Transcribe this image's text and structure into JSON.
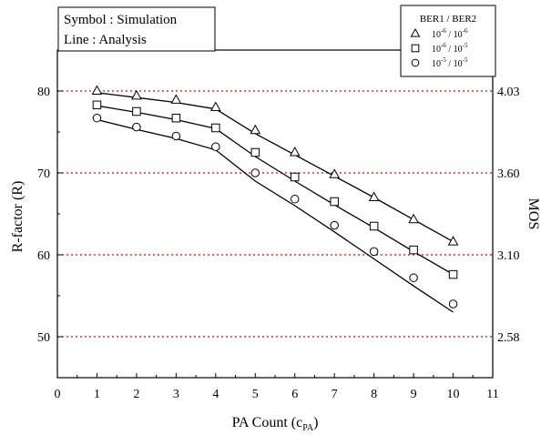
{
  "chart_data": {
    "type": "line",
    "xlabel": {
      "main": "PA Count (c",
      "sub": "PA",
      "close": ")"
    },
    "ylabel": "R-factor (R)",
    "y2label": "MOS",
    "xlim": [
      0,
      11
    ],
    "ylim": [
      45,
      85
    ],
    "xticks": [
      "0",
      "1",
      "2",
      "3",
      "4",
      "5",
      "6",
      "7",
      "8",
      "9",
      "10",
      "11"
    ],
    "yticks": [
      {
        "value": 50,
        "label": "50"
      },
      {
        "value": 60,
        "label": "60"
      },
      {
        "value": 70,
        "label": "70"
      },
      {
        "value": 80,
        "label": "80"
      }
    ],
    "mos_ticks": [
      {
        "value": 80,
        "label": "4.03"
      },
      {
        "value": 70,
        "label": "3.60"
      },
      {
        "value": 60,
        "label": "3.10"
      },
      {
        "value": 50,
        "label": "2.58"
      }
    ],
    "reference_lines_color": "#e00000",
    "annotation": {
      "line1": "Symbol : Simulation",
      "line2": "Line : Analysis"
    },
    "legend": {
      "title": "BER1 / BER2",
      "placement": "top-right"
    },
    "series": [
      {
        "marker": "triangle",
        "legend_parts": [
          "10",
          "-6",
          " / 10",
          "-6"
        ],
        "x": [
          1,
          2,
          3,
          4,
          5,
          6,
          7,
          8,
          9,
          10
        ],
        "simulation": [
          80.0,
          79.4,
          78.9,
          78.0,
          75.2,
          72.5,
          69.8,
          67.0,
          64.3,
          61.6
        ],
        "analysis": [
          79.8,
          79.2,
          78.6,
          77.8,
          74.8,
          72.2,
          69.6,
          67.0,
          64.3,
          61.6
        ]
      },
      {
        "marker": "square",
        "legend_parts": [
          "10",
          "-6",
          " / 10",
          "-5"
        ],
        "x": [
          1,
          2,
          3,
          4,
          5,
          6,
          7,
          8,
          9,
          10
        ],
        "simulation": [
          78.3,
          77.5,
          76.7,
          75.5,
          72.5,
          69.5,
          66.5,
          63.5,
          60.6,
          57.6
        ],
        "analysis": [
          78.2,
          77.4,
          76.5,
          75.4,
          72.0,
          69.0,
          66.1,
          63.3,
          60.4,
          57.6
        ]
      },
      {
        "marker": "circle",
        "legend_parts": [
          "10",
          "-5",
          " / 10",
          "-5"
        ],
        "x": [
          1,
          2,
          3,
          4,
          5,
          6,
          7,
          8,
          9,
          10
        ],
        "simulation": [
          76.7,
          75.6,
          74.5,
          73.2,
          70.0,
          66.8,
          63.6,
          60.4,
          57.2,
          54.0
        ],
        "analysis": [
          76.5,
          75.3,
          74.2,
          72.8,
          69.0,
          66.0,
          62.8,
          59.5,
          56.2,
          53.0
        ]
      }
    ]
  }
}
